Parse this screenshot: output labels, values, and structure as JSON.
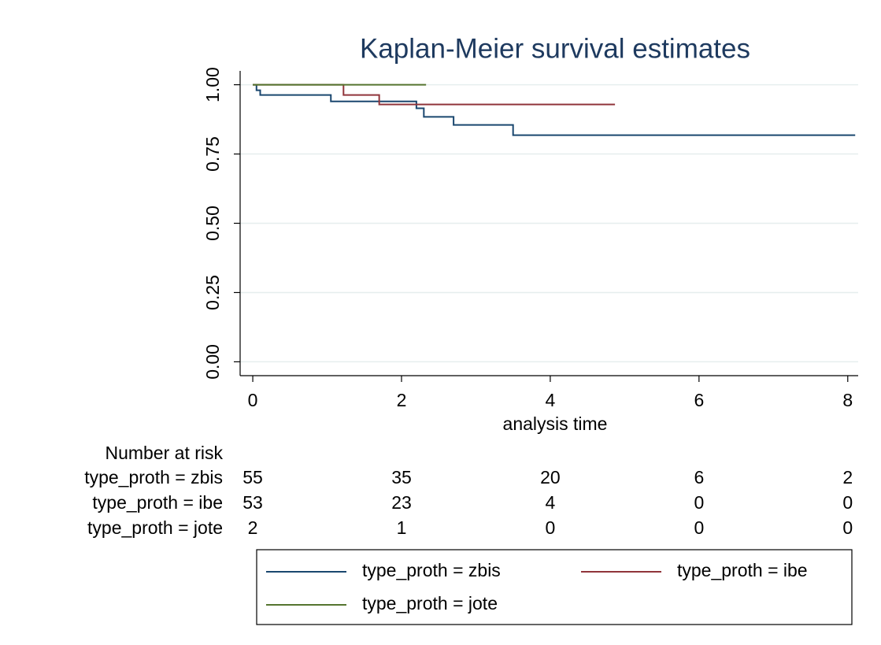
{
  "chart_data": {
    "type": "line",
    "title": "Kaplan-Meier survival estimates",
    "x_label": "analysis time",
    "xlim": [
      -0.17,
      8.14
    ],
    "xticks": [
      0,
      2,
      4,
      6,
      8
    ],
    "ylim": [
      -0.05,
      1.05
    ],
    "yticks": [
      {
        "value": 0,
        "label": "0.00"
      },
      {
        "value": 0.25,
        "label": "0.25"
      },
      {
        "value": 0.5,
        "label": "0.50"
      },
      {
        "value": 0.75,
        "label": "0.75"
      },
      {
        "value": 1,
        "label": "1.00"
      }
    ],
    "grid": true,
    "series": [
      {
        "name": "type_proth = zbis",
        "color": "#1a476f",
        "x": [
          0,
          0.05,
          0.05,
          0.1,
          0.1,
          1.05,
          1.05,
          2.2,
          2.2,
          2.3,
          2.3,
          2.7,
          2.7,
          3.5,
          3.5,
          8.1
        ],
        "values": [
          1,
          1,
          0.98,
          0.98,
          0.963,
          0.963,
          0.94,
          0.94,
          0.915,
          0.915,
          0.884,
          0.884,
          0.855,
          0.855,
          0.818,
          0.818
        ]
      },
      {
        "name": "type_proth = ibe",
        "color": "#90353b",
        "x": [
          0,
          1.22,
          1.22,
          1.7,
          1.7,
          4.87
        ],
        "values": [
          1,
          1,
          0.963,
          0.963,
          0.929,
          0.929
        ]
      },
      {
        "name": "type_proth = jote",
        "color": "#55752f",
        "x": [
          0,
          2.33
        ],
        "values": [
          1,
          1
        ]
      }
    ],
    "risk_table": {
      "title": "Number at risk",
      "rows": [
        {
          "label": "type_proth = zbis",
          "counts": [
            55,
            35,
            20,
            6,
            2
          ]
        },
        {
          "label": "type_proth = ibe",
          "counts": [
            53,
            23,
            4,
            0,
            0
          ]
        },
        {
          "label": "type_proth = jote",
          "counts": [
            2,
            1,
            0,
            0,
            0
          ]
        }
      ]
    }
  }
}
